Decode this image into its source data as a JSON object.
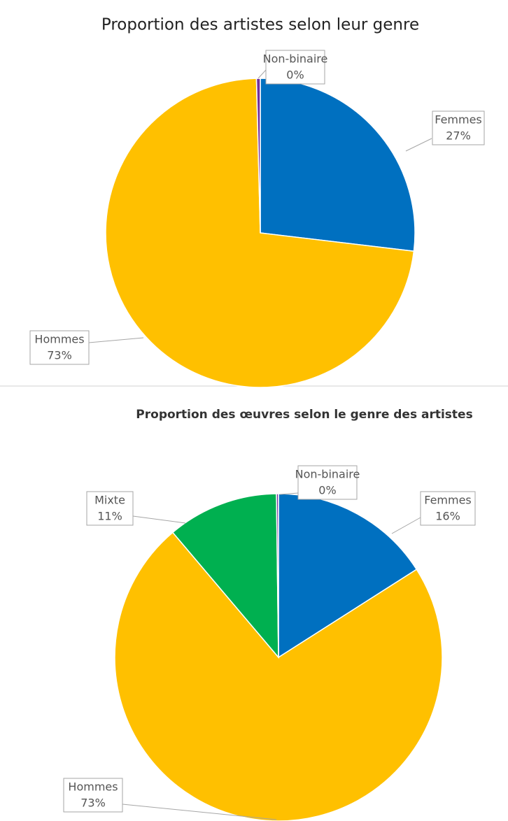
{
  "chart_data": [
    {
      "type": "pie",
      "title": "Proportion des artistes selon leur genre",
      "categories": [
        "Femmes",
        "Hommes",
        "Non-binaire"
      ],
      "values": [
        27,
        73,
        0.4
      ],
      "value_labels": [
        "27%",
        "73%",
        "0%"
      ],
      "colors": [
        "#0070c0",
        "#ffc000",
        "#7030a0"
      ]
    },
    {
      "type": "pie",
      "title": "Proportion des œuvres selon le genre des artistes",
      "categories": [
        "Femmes",
        "Hommes",
        "Mixte",
        "Non-binaire"
      ],
      "values": [
        16,
        73,
        11,
        0.2
      ],
      "value_labels": [
        "16%",
        "73%",
        "11%",
        "0%"
      ],
      "colors": [
        "#0070c0",
        "#ffc000",
        "#00b050",
        "#7030a0"
      ]
    }
  ]
}
